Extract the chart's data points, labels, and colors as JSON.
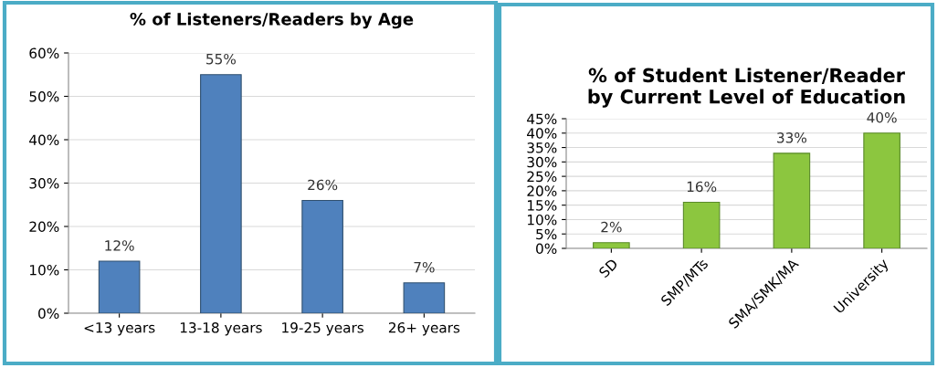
{
  "chart_data": [
    {
      "type": "bar",
      "title": "% of Listeners/Readers by Age",
      "categories": [
        "<13 years",
        "13-18 years",
        "19-25 years",
        "26+ years"
      ],
      "values": [
        12,
        55,
        26,
        7
      ],
      "value_labels": [
        "12%",
        "55%",
        "26%",
        "7%"
      ],
      "color": "#4f81bd",
      "ylim": [
        0,
        60
      ],
      "yticks": [
        {
          "value": 0,
          "label": "0%"
        },
        {
          "value": 10,
          "label": "10%"
        },
        {
          "value": 20,
          "label": "20%"
        },
        {
          "value": 30,
          "label": "30%"
        },
        {
          "value": 40,
          "label": "40%"
        },
        {
          "value": 50,
          "label": "50%"
        },
        {
          "value": 60,
          "label": "60%"
        }
      ],
      "grid": "y"
    },
    {
      "type": "bar",
      "title": "% of Student Listener/Reader\nby Current Level of Education",
      "categories": [
        "SD",
        "SMP/MTs",
        "SMA/SMK/MA",
        "University"
      ],
      "values": [
        2,
        16,
        33,
        40
      ],
      "value_labels": [
        "2%",
        "16%",
        "33%",
        "40%"
      ],
      "color": "#8cc63f",
      "ylim": [
        0,
        45
      ],
      "yticks": [
        {
          "value": 0,
          "label": "0%"
        },
        {
          "value": 5,
          "label": "5%"
        },
        {
          "value": 10,
          "label": "10%"
        },
        {
          "value": 15,
          "label": "15%"
        },
        {
          "value": 20,
          "label": "20%"
        },
        {
          "value": 25,
          "label": "25%"
        },
        {
          "value": 30,
          "label": "30%"
        },
        {
          "value": 35,
          "label": "35%"
        },
        {
          "value": 40,
          "label": "40%"
        },
        {
          "value": 45,
          "label": "45%"
        }
      ],
      "grid": "y"
    }
  ]
}
